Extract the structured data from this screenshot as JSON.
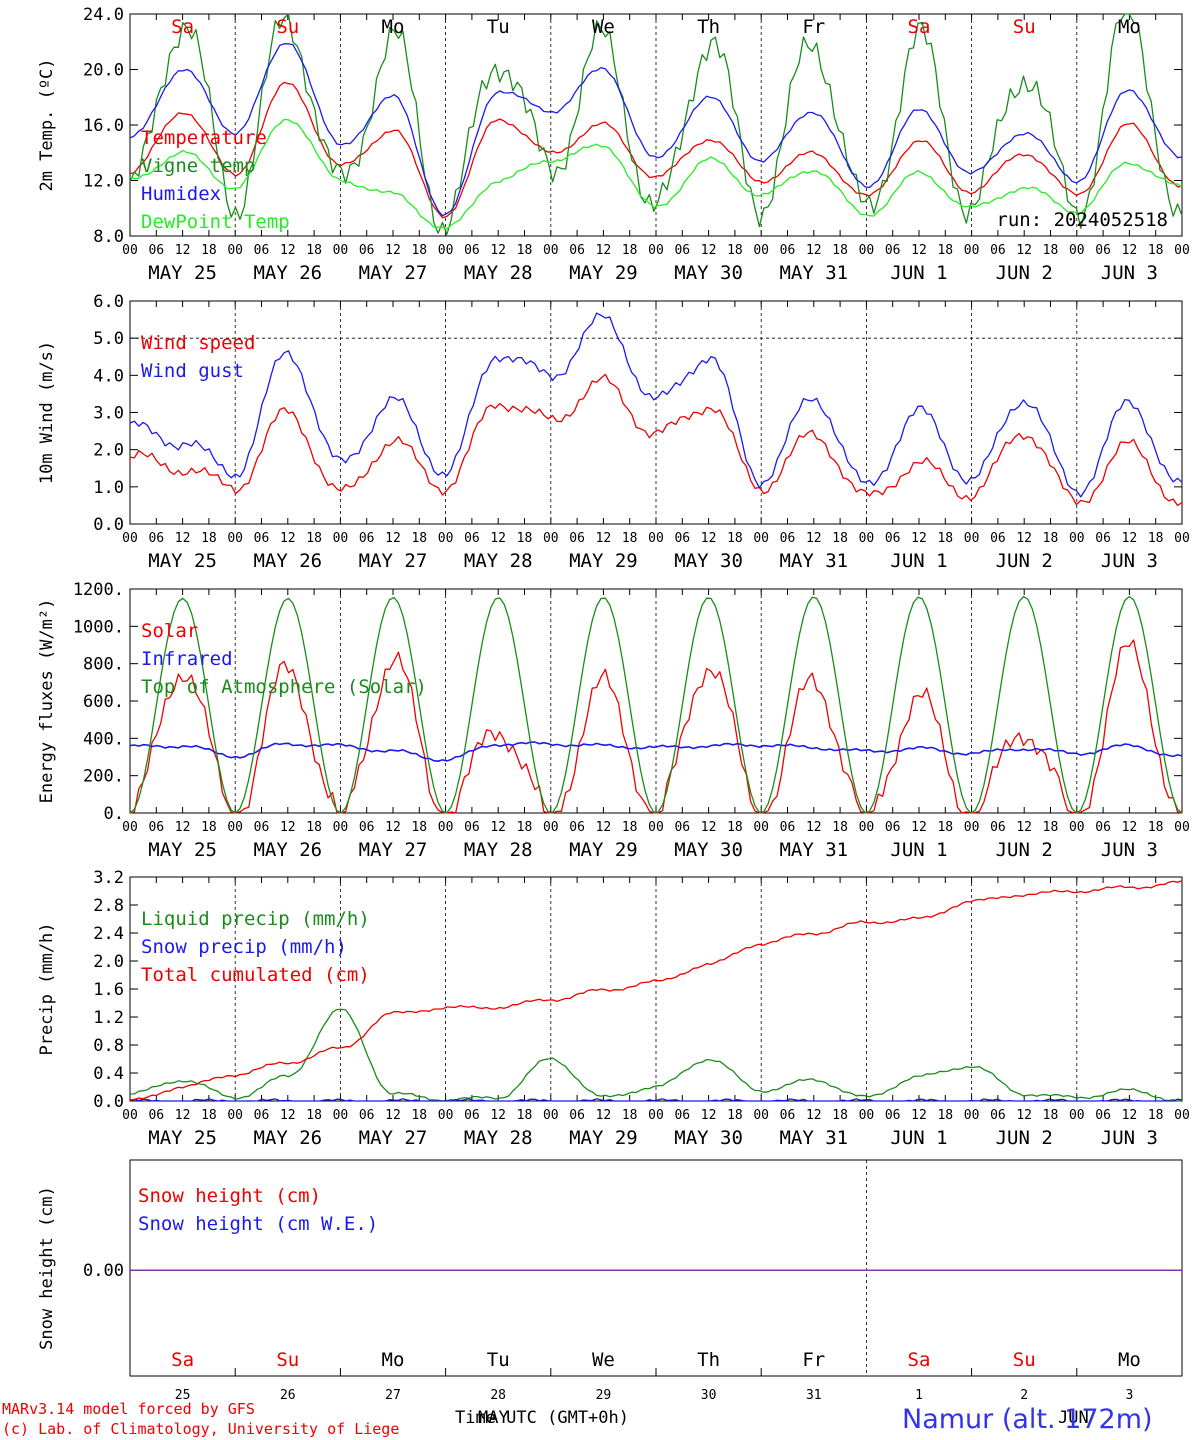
{
  "colors": {
    "red": "#ee0000",
    "green": "#1a8c1a",
    "blue": "#1a1aee",
    "lightgreen": "#22ee22",
    "purple": "#8833aa",
    "black": "#000000",
    "namur": "#3333ee"
  },
  "days": [
    {
      "wd": "Sa",
      "wk": true,
      "date": "MAY 25",
      "num": "25"
    },
    {
      "wd": "Su",
      "wk": true,
      "date": "MAY 26",
      "num": "26"
    },
    {
      "wd": "Mo",
      "wk": false,
      "date": "MAY 27",
      "num": "27"
    },
    {
      "wd": "Tu",
      "wk": false,
      "date": "MAY 28",
      "num": "28"
    },
    {
      "wd": "We",
      "wk": false,
      "date": "MAY 29",
      "num": "29"
    },
    {
      "wd": "Th",
      "wk": false,
      "date": "MAY 30",
      "num": "30"
    },
    {
      "wd": "Fr",
      "wk": false,
      "date": "MAY 31",
      "num": "31"
    },
    {
      "wd": "Sa",
      "wk": true,
      "date": "JUN  1",
      "num": "1"
    },
    {
      "wd": "Su",
      "wk": true,
      "date": "JUN  2",
      "num": "2"
    },
    {
      "wd": "Mo",
      "wk": false,
      "date": "JUN  3",
      "num": "3"
    }
  ],
  "hour_ticks": [
    "00",
    "06",
    "12",
    "18"
  ],
  "footer": {
    "model": "MARv3.14 model forced by GFS",
    "lab": "(c) Lab. of Climatology, University of Liege",
    "time_axis": "Time UTC (GMT+0h)",
    "month_may": "MAY",
    "month_jun": "JUN",
    "station": "Namur (alt. 172m)"
  },
  "chart_data": [
    {
      "type": "line",
      "ylabel": "2m Temp. (ºC)",
      "ylim": [
        8,
        24
      ],
      "yticks": [
        "8.0",
        "12.0",
        "16.0",
        "20.0",
        "24.0"
      ],
      "grid": "vertical dotted at day boundaries",
      "annotation": "run: 2024052518",
      "x_start": "MAY 25 00",
      "x_step_hours": 12,
      "series": [
        {
          "name": "Temperature",
          "color": "#ee0000",
          "values": [
            12.5,
            17.0,
            12.5,
            19.0,
            13.0,
            15.6,
            9.5,
            16.5,
            14.0,
            16.0,
            12.2,
            15.0,
            12.0,
            14.0,
            10.8,
            14.8,
            11.2,
            14.0,
            11.0,
            16.0,
            11.5
          ]
        },
        {
          "name": "Vigne temp",
          "color": "#1a8c1a",
          "values": [
            11.0,
            23.5,
            10.5,
            23.5,
            11.5,
            22.0,
            9.0,
            21.0,
            13.0,
            22.0,
            9.5,
            22.0,
            10.5,
            22.0,
            9.5,
            22.0,
            10.0,
            20.0,
            10.0,
            24.0,
            8.5
          ]
        },
        {
          "name": "Humidex",
          "color": "#1a1aee",
          "values": [
            15.0,
            20.0,
            15.5,
            22.0,
            14.5,
            18.0,
            9.5,
            18.5,
            17.0,
            20.0,
            13.5,
            18.0,
            13.5,
            17.0,
            11.5,
            17.0,
            12.5,
            15.5,
            12.0,
            18.5,
            13.5
          ]
        },
        {
          "name": "DewPoint Temp",
          "color": "#22ee22",
          "values": [
            12.0,
            14.0,
            11.5,
            16.5,
            12.0,
            11.0,
            8.5,
            12.0,
            13.5,
            14.5,
            10.0,
            13.5,
            11.0,
            12.8,
            9.5,
            12.5,
            10.0,
            11.5,
            9.8,
            13.3,
            11.5
          ]
        }
      ]
    },
    {
      "type": "line",
      "ylabel": "10m Wind (m/s)",
      "ylim": [
        0,
        6
      ],
      "yticks": [
        "0.0",
        "1.0",
        "2.0",
        "3.0",
        "4.0",
        "5.0",
        "6.0"
      ],
      "hline": 5.0,
      "x_start": "MAY 25 00",
      "x_step_hours": 12,
      "series": [
        {
          "name": "Wind speed",
          "color": "#ee0000",
          "values": [
            1.8,
            1.5,
            1.0,
            3.0,
            0.8,
            2.2,
            1.0,
            3.3,
            2.8,
            3.8,
            2.4,
            3.2,
            1.0,
            2.4,
            0.7,
            1.6,
            0.8,
            2.5,
            0.6,
            2.1,
            0.5
          ]
        },
        {
          "name": "Wind gust",
          "color": "#1a1aee",
          "values": [
            2.6,
            2.2,
            1.4,
            4.6,
            1.6,
            3.3,
            1.4,
            4.6,
            4.0,
            5.5,
            3.3,
            4.5,
            1.2,
            3.4,
            1.0,
            3.0,
            1.2,
            3.4,
            0.9,
            3.2,
            1.0
          ]
        }
      ]
    },
    {
      "type": "line",
      "ylabel": "Energy fluxes (W/m²)",
      "ylim": [
        0,
        1200
      ],
      "yticks": [
        "0.",
        "200.",
        "400.",
        "600.",
        "800.",
        "1000.",
        "1200."
      ],
      "x_start": "MAY 25 00",
      "x_step_hours": 12,
      "series": [
        {
          "name": "Solar",
          "color": "#ee0000",
          "values": [
            0,
            780,
            0,
            760,
            0,
            810,
            0,
            460,
            0,
            680,
            0,
            800,
            0,
            700,
            0,
            610,
            0,
            450,
            0,
            860,
            0
          ]
        },
        {
          "name": "Infrared",
          "color": "#1a1aee",
          "values": [
            355,
            360,
            305,
            370,
            360,
            330,
            285,
            370,
            370,
            360,
            350,
            360,
            365,
            350,
            330,
            345,
            320,
            345,
            320,
            360,
            300
          ]
        },
        {
          "name": "Top of Atmosphere (Solar)",
          "color": "#1a8c1a",
          "values": [
            0,
            1150,
            0,
            1150,
            0,
            1155,
            0,
            1155,
            0,
            1155,
            0,
            1155,
            0,
            1158,
            0,
            1158,
            0,
            1160,
            0,
            1160,
            0
          ]
        }
      ]
    },
    {
      "type": "line",
      "ylabel": "Precip (mm/h)",
      "ylim": [
        0,
        3.2
      ],
      "yticks": [
        "0.0",
        "0.4",
        "0.8",
        "1.2",
        "1.6",
        "2.0",
        "2.4",
        "2.8",
        "3.2"
      ],
      "x_start": "MAY 25 00",
      "x_step_hours": 12,
      "series": [
        {
          "name": "Liquid precip (mm/h)",
          "color": "#1a8c1a",
          "values": [
            0.1,
            0.3,
            0.05,
            0.35,
            1.3,
            0.1,
            0.02,
            0.05,
            0.6,
            0.05,
            0.2,
            0.6,
            0.15,
            0.3,
            0.05,
            0.35,
            0.5,
            0.1,
            0.05,
            0.15,
            0.0
          ]
        },
        {
          "name": "Snow precip (mm/h)",
          "color": "#1a1aee",
          "values": [
            0,
            0,
            0,
            0,
            0,
            0,
            0,
            0,
            0,
            0,
            0,
            0,
            0,
            0,
            0,
            0,
            0,
            0,
            0,
            0,
            0
          ]
        },
        {
          "name": "Total cumulated (cm)",
          "color": "#ee0000",
          "values": [
            0.0,
            0.2,
            0.38,
            0.55,
            0.75,
            1.25,
            1.33,
            1.34,
            1.45,
            1.58,
            1.7,
            1.95,
            2.25,
            2.4,
            2.55,
            2.6,
            2.85,
            2.95,
            3.0,
            3.05,
            3.12
          ]
        }
      ]
    },
    {
      "type": "line",
      "ylabel": "Snow height (cm)",
      "yticks": [
        "0.00"
      ],
      "x_start": "MAY 25 00",
      "x_step_hours": 12,
      "series": [
        {
          "name": "Snow height (cm)",
          "color": "#ee0000",
          "values": [
            0,
            0,
            0,
            0,
            0,
            0,
            0,
            0,
            0,
            0,
            0,
            0,
            0,
            0,
            0,
            0,
            0,
            0,
            0,
            0,
            0
          ]
        },
        {
          "name": "Snow height (cm W.E.)",
          "color": "#1a1aee",
          "values": [
            0,
            0,
            0,
            0,
            0,
            0,
            0,
            0,
            0,
            0,
            0,
            0,
            0,
            0,
            0,
            0,
            0,
            0,
            0,
            0,
            0
          ]
        }
      ]
    }
  ]
}
